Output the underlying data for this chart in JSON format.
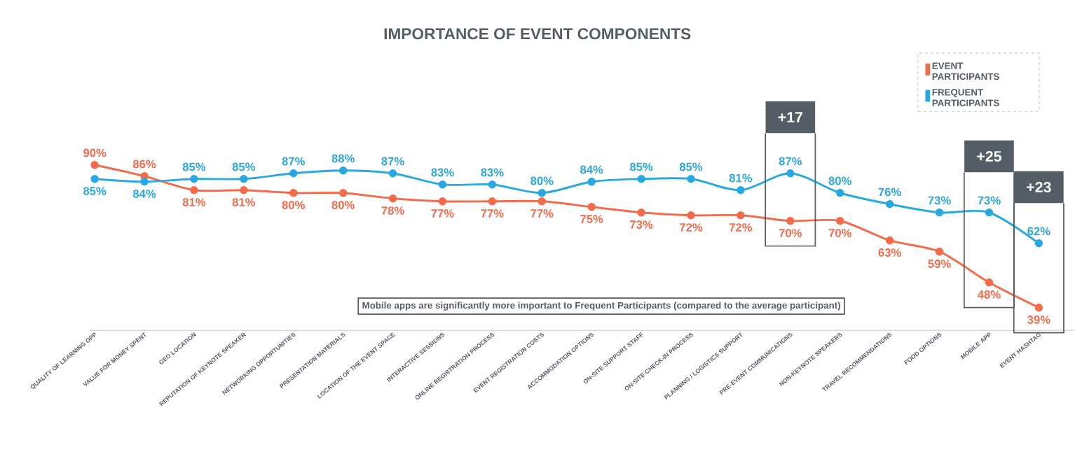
{
  "chart_data": {
    "type": "line",
    "title": "IMPORTANCE OF EVENT COMPONENTS",
    "categories": [
      "QUALITY OF LEARNING OPP",
      "VALUE FOR MONEY SPENT",
      "GEO LOCATION",
      "REPUTATION OF KEYNOTE SPEAKER",
      "NETWORKING OPPORTUNITIES",
      "PRESENTATION MATERIALS",
      "LOCATION OF THE EVENT SPACE",
      "INTERACTIVE SESSIONS",
      "ONLINE REGISTRATION PROCESS",
      "EVENT REGISTRATION COSTS",
      "ACCOMMODATION OPTIONS",
      "ON-SITE SUPPORT STAFF",
      "ON-SITE CHECK-IN PROCESS",
      "PLANNING / LOGISTICS SUPPORT",
      "PRE-EVENT COMMUNICATIONS",
      "NON-KEYNOTE SPEAKERS",
      "TRAVEL RECOMMENDATIONS",
      "FOOD OPTIONS",
      "MOBILE APP",
      "EVENT HASHTAG"
    ],
    "series": [
      {
        "name": "EVENT PARTICIPANTS",
        "color": "#f26b4a",
        "values": [
          90,
          86,
          81,
          81,
          80,
          80,
          78,
          77,
          77,
          77,
          75,
          73,
          72,
          72,
          70,
          70,
          63,
          59,
          48,
          39
        ],
        "value_labels": [
          "90%",
          "86%",
          "81%",
          "81%",
          "80%",
          "80%",
          "78%",
          "77%",
          "77%",
          "77%",
          "75%",
          "73%",
          "72%",
          "72%",
          "70%",
          "70%",
          "63%",
          "59%",
          "48%",
          "39%"
        ]
      },
      {
        "name": "FREQUENT PARTICIPANTS",
        "color": "#29a8e0",
        "values": [
          85,
          84,
          85,
          85,
          87,
          88,
          87,
          83,
          83,
          80,
          84,
          85,
          85,
          81,
          87,
          80,
          76,
          73,
          73,
          62
        ],
        "value_labels": [
          "85%",
          "84%",
          "85%",
          "85%",
          "87%",
          "88%",
          "87%",
          "83%",
          "83%",
          "80%",
          "84%",
          "85%",
          "85%",
          "81%",
          "87%",
          "80%",
          "76%",
          "73%",
          "73%",
          "62%"
        ]
      }
    ],
    "annotations": [
      "+17",
      "+25",
      "+23",
      "Mobile apps are significantly more important to Frequent Participants (compared to the average participant)"
    ],
    "legend": "top right",
    "marker": "circle",
    "line_style": "solid"
  }
}
